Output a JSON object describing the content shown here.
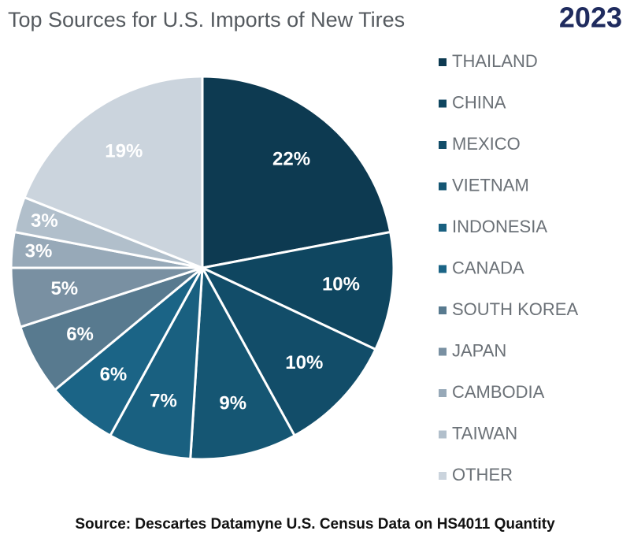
{
  "chart_data": {
    "type": "pie",
    "title": "Top Sources for U.S. Imports of New Tires",
    "title_year": "2023",
    "categories": [
      "THAILAND",
      "CHINA",
      "MEXICO",
      "VIETNAM",
      "INDONESIA",
      "CANADA",
      "SOUTH KOREA",
      "JAPAN",
      "CAMBODIA",
      "TAIWAN",
      "OTHER"
    ],
    "values": [
      22,
      10,
      10,
      9,
      7,
      6,
      6,
      5,
      3,
      3,
      19
    ],
    "value_labels": [
      "22%",
      "10%",
      "10%",
      "9%",
      "7%",
      "6%",
      "6%",
      "5%",
      "3%",
      "3%",
      "19%"
    ],
    "colors": [
      "#0d3a51",
      "#0f4660",
      "#124d69",
      "#155673",
      "#196080",
      "#1b6486",
      "#587a8f",
      "#7990a2",
      "#97a9b8",
      "#b1bfcb",
      "#cbd4dd"
    ],
    "source": "Source: Descartes Datamyne U.S. Census Data on HS4011 Quantity"
  }
}
